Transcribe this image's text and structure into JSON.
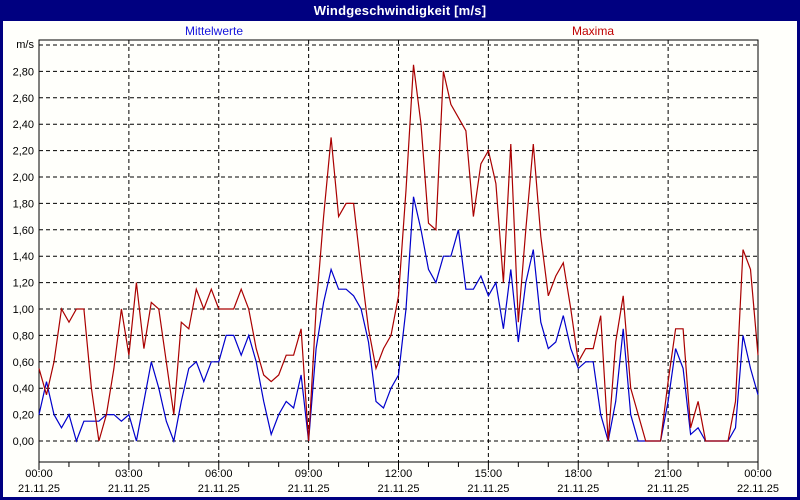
{
  "window": {
    "title": "Windgeschwindigkeit [m/s]"
  },
  "legend": {
    "mean_label": "Mittelwerte",
    "max_label": "Maxima",
    "mean_color": "#1515dd",
    "max_color": "#c00000"
  },
  "colors": {
    "titlebar_bg": "#000080",
    "outer_border": "#000080",
    "background": "#fffffb",
    "grid": "#000000",
    "mean_line": "#0000cc",
    "max_line": "#aa0000"
  },
  "chart_data": {
    "type": "line",
    "title": "Windgeschwindigkeit [m/s]",
    "xlabel": "",
    "ylabel": "m/s",
    "ylim": [
      0,
      3.0
    ],
    "y_tick_step": 0.2,
    "y_tick_labels": [
      "0,00",
      "0,20",
      "0,40",
      "0,60",
      "0,80",
      "1,00",
      "1,20",
      "1,40",
      "1,60",
      "1,80",
      "2,00",
      "2,20",
      "2,40",
      "2,60",
      "2,80"
    ],
    "grid": "dashed",
    "x_span_hours": 24,
    "x_interval_minutes": 15,
    "x_ticks": [
      {
        "time": "00:00",
        "date": "21.11.25"
      },
      {
        "time": "03:00",
        "date": "21.11.25"
      },
      {
        "time": "06:00",
        "date": "21.11.25"
      },
      {
        "time": "09:00",
        "date": "21.11.25"
      },
      {
        "time": "12:00",
        "date": "21.11.25"
      },
      {
        "time": "15:00",
        "date": "21.11.25"
      },
      {
        "time": "18:00",
        "date": "21.11.25"
      },
      {
        "time": "21:00",
        "date": "21.11.25"
      },
      {
        "time": "00:00",
        "date": "22.11.25"
      }
    ],
    "series": [
      {
        "name": "Mittelwerte",
        "color": "#0000cc",
        "values": [
          0.2,
          0.45,
          0.2,
          0.1,
          0.2,
          0.0,
          0.15,
          0.15,
          0.15,
          0.2,
          0.2,
          0.15,
          0.2,
          0.0,
          0.3,
          0.6,
          0.4,
          0.15,
          0.0,
          0.3,
          0.55,
          0.6,
          0.45,
          0.6,
          0.6,
          0.8,
          0.8,
          0.65,
          0.8,
          0.6,
          0.3,
          0.05,
          0.2,
          0.3,
          0.25,
          0.5,
          0.0,
          0.7,
          1.05,
          1.3,
          1.15,
          1.15,
          1.1,
          1.0,
          0.75,
          0.3,
          0.25,
          0.4,
          0.5,
          1.0,
          1.85,
          1.6,
          1.3,
          1.2,
          1.4,
          1.4,
          1.6,
          1.15,
          1.15,
          1.25,
          1.1,
          1.2,
          0.85,
          1.3,
          0.75,
          1.2,
          1.45,
          0.9,
          0.7,
          0.75,
          0.95,
          0.7,
          0.55,
          0.6,
          0.6,
          0.2,
          0.0,
          0.3,
          0.85,
          0.2,
          0.0,
          0.0,
          0.0,
          0.0,
          0.3,
          0.7,
          0.55,
          0.05,
          0.1,
          0.0,
          0.0,
          0.0,
          0.0,
          0.1,
          0.8,
          0.55,
          0.35
        ]
      },
      {
        "name": "Maxima",
        "color": "#aa0000",
        "values": [
          0.55,
          0.35,
          0.6,
          1.0,
          0.9,
          1.0,
          1.0,
          0.4,
          0.0,
          0.2,
          0.55,
          1.0,
          0.65,
          1.2,
          0.7,
          1.05,
          1.0,
          0.6,
          0.2,
          0.9,
          0.85,
          1.15,
          1.0,
          1.15,
          1.0,
          1.0,
          1.0,
          1.15,
          1.0,
          0.7,
          0.5,
          0.45,
          0.5,
          0.65,
          0.65,
          0.85,
          0.0,
          1.0,
          1.7,
          2.3,
          1.7,
          1.8,
          1.8,
          1.3,
          0.85,
          0.55,
          0.7,
          0.8,
          1.1,
          1.9,
          2.85,
          2.4,
          1.65,
          1.6,
          2.8,
          2.55,
          2.45,
          2.35,
          1.7,
          2.1,
          2.2,
          1.95,
          1.2,
          2.25,
          0.9,
          1.6,
          2.25,
          1.55,
          1.1,
          1.25,
          1.35,
          1.0,
          0.6,
          0.7,
          0.7,
          0.95,
          0.0,
          0.75,
          1.1,
          0.4,
          0.2,
          0.0,
          0.0,
          0.0,
          0.45,
          0.85,
          0.85,
          0.1,
          0.3,
          0.0,
          0.0,
          0.0,
          0.0,
          0.3,
          1.45,
          1.3,
          0.65
        ]
      }
    ]
  }
}
